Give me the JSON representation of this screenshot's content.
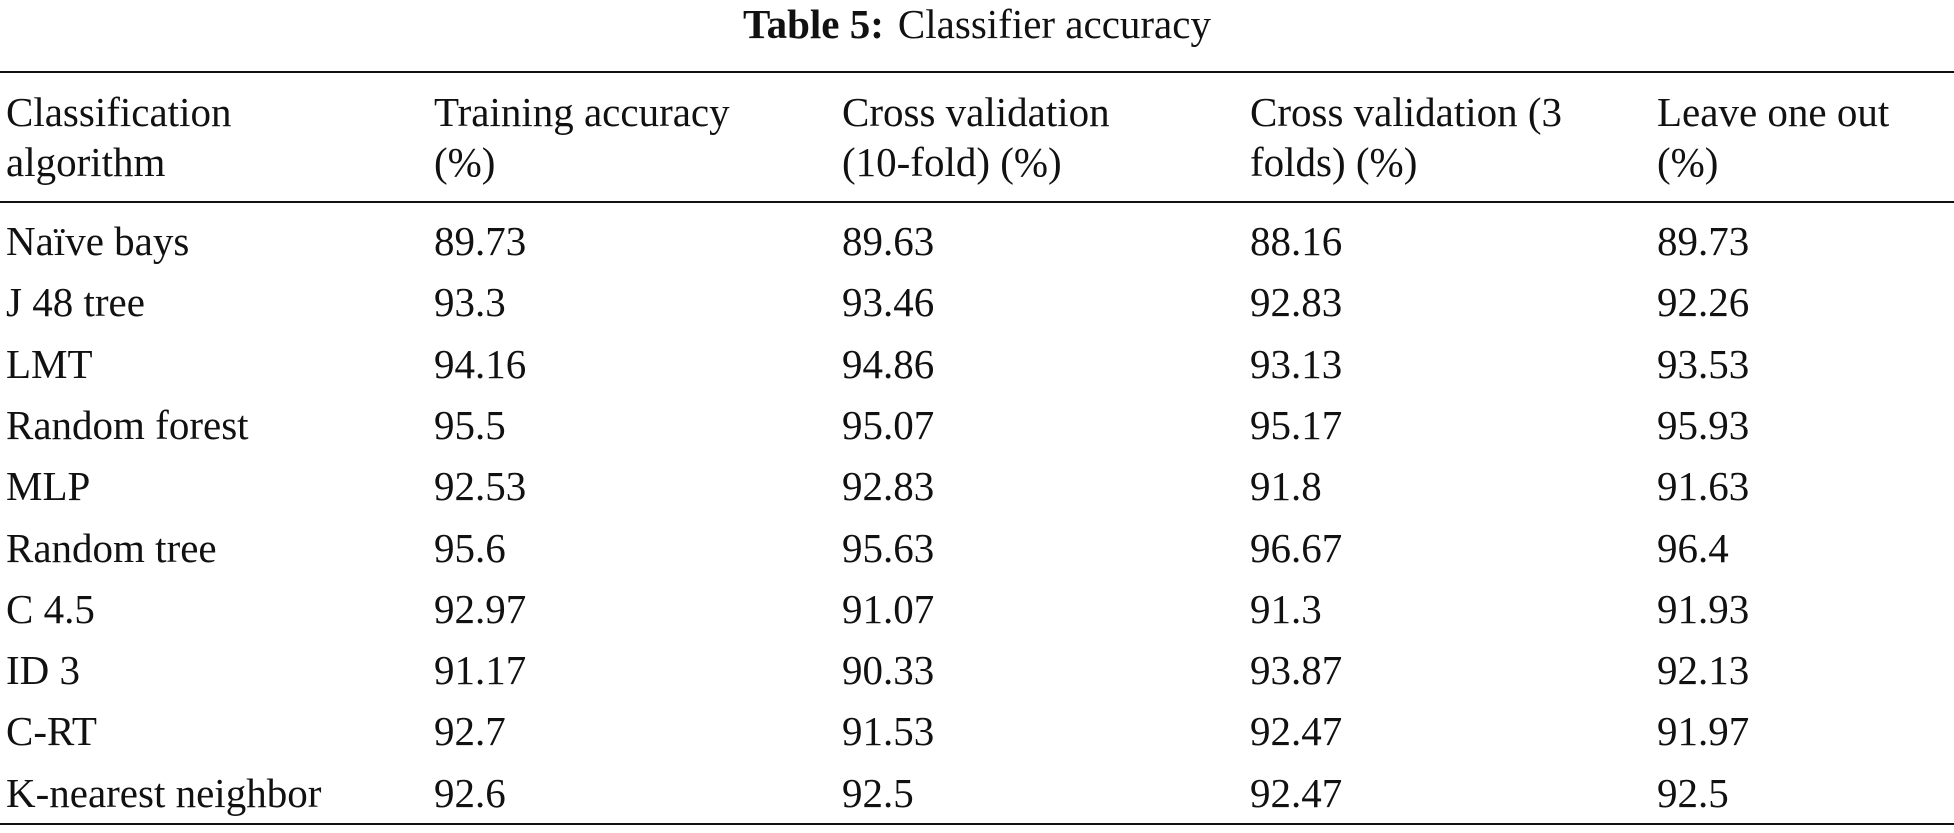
{
  "caption": {
    "label": "Table 5:",
    "title": "Classifier accuracy"
  },
  "table": {
    "header": [
      [
        "Classification",
        "algorithm"
      ],
      [
        "Training accuracy",
        "(%)"
      ],
      [
        "Cross validation",
        "(10-fold) (%)"
      ],
      [
        "Cross validation (3",
        "folds) (%)"
      ],
      [
        "Leave one out",
        "(%)"
      ]
    ],
    "rows": [
      [
        "Naïve bays",
        "89.73",
        "89.63",
        "88.16",
        "89.73"
      ],
      [
        "J 48 tree",
        "93.3",
        "93.46",
        "92.83",
        "92.26"
      ],
      [
        "LMT",
        "94.16",
        "94.86",
        "93.13",
        "93.53"
      ],
      [
        "Random forest",
        "95.5",
        "95.07",
        "95.17",
        "95.93"
      ],
      [
        "MLP",
        "92.53",
        "92.83",
        "91.8",
        "91.63"
      ],
      [
        "Random tree",
        "95.6",
        "95.63",
        "96.67",
        "96.4"
      ],
      [
        "C 4.5",
        "92.97",
        "91.07",
        "91.3",
        "91.93"
      ],
      [
        "ID 3",
        "91.17",
        "90.33",
        "93.87",
        "92.13"
      ],
      [
        "C-RT",
        "92.7",
        "91.53",
        "92.47",
        "91.97"
      ],
      [
        "K-nearest neighbor",
        "92.6",
        "92.5",
        "92.47",
        "92.5"
      ]
    ]
  }
}
